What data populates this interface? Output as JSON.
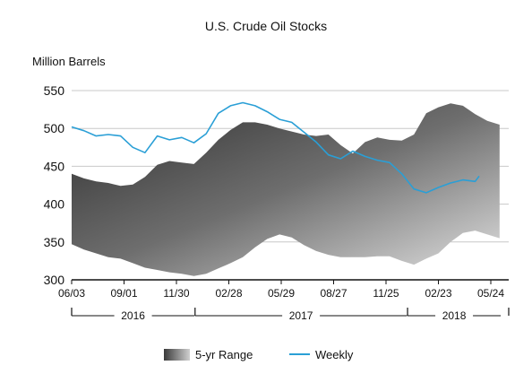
{
  "chart_data": {
    "type": "area",
    "title": "U.S. Crude Oil Stocks",
    "ylabel": "Million Barrels",
    "xlabel": "",
    "ylim": [
      300,
      550
    ],
    "yticks": [
      300,
      350,
      400,
      450,
      500,
      550
    ],
    "grid": true,
    "legend_position": "bottom",
    "x_ticks": [
      {
        "label": "06/03",
        "date": "2016-06-03"
      },
      {
        "label": "09/01",
        "date": "2016-09-01"
      },
      {
        "label": "11/30",
        "date": "2016-11-30"
      },
      {
        "label": "02/28",
        "date": "2017-02-28"
      },
      {
        "label": "05/29",
        "date": "2017-05-29"
      },
      {
        "label": "08/27",
        "date": "2017-08-27"
      },
      {
        "label": "11/25",
        "date": "2017-11-25"
      },
      {
        "label": "02/23",
        "date": "2018-02-23"
      },
      {
        "label": "05/24",
        "date": "2018-05-24"
      }
    ],
    "year_labels": [
      {
        "label": "2016",
        "start": "2016-06-03",
        "end": "2016-12-31"
      },
      {
        "label": "2017",
        "start": "2017-01-01",
        "end": "2017-12-31"
      },
      {
        "label": "2018",
        "start": "2018-01-01",
        "end": "2018-06-10"
      }
    ],
    "range_series": {
      "name": "5-yr Range",
      "dates": [
        "2016-06-03",
        "2016-06-24",
        "2016-07-15",
        "2016-08-05",
        "2016-08-26",
        "2016-09-16",
        "2016-10-07",
        "2016-10-28",
        "2016-11-18",
        "2016-12-09",
        "2016-12-30",
        "2017-01-20",
        "2017-02-10",
        "2017-03-03",
        "2017-03-24",
        "2017-04-14",
        "2017-05-05",
        "2017-05-26",
        "2017-06-16",
        "2017-07-07",
        "2017-07-28",
        "2017-08-18",
        "2017-09-08",
        "2017-09-29",
        "2017-10-20",
        "2017-11-10",
        "2017-12-01",
        "2017-12-22",
        "2018-01-12",
        "2018-02-02",
        "2018-02-23",
        "2018-03-16",
        "2018-04-06",
        "2018-04-27",
        "2018-05-18",
        "2018-06-08"
      ],
      "high": [
        440,
        434,
        430,
        428,
        424,
        426,
        436,
        452,
        457,
        455,
        453,
        468,
        485,
        498,
        508,
        508,
        505,
        500,
        496,
        492,
        490,
        492,
        478,
        467,
        482,
        488,
        485,
        484,
        492,
        520,
        528,
        533,
        530,
        519,
        510,
        505
      ],
      "low": [
        347,
        340,
        335,
        330,
        328,
        322,
        316,
        313,
        310,
        308,
        305,
        308,
        315,
        322,
        330,
        343,
        354,
        360,
        356,
        346,
        338,
        333,
        330,
        330,
        330,
        331,
        331,
        325,
        320,
        328,
        335,
        350,
        362,
        365,
        360,
        355
      ]
    },
    "weekly_series": {
      "name": "Weekly",
      "color": "#2a9fd6",
      "dates": [
        "2016-06-03",
        "2016-06-24",
        "2016-07-15",
        "2016-08-05",
        "2016-08-26",
        "2016-09-16",
        "2016-10-07",
        "2016-10-28",
        "2016-11-18",
        "2016-12-09",
        "2016-12-30",
        "2017-01-20",
        "2017-02-10",
        "2017-03-03",
        "2017-03-24",
        "2017-04-14",
        "2017-05-05",
        "2017-05-26",
        "2017-06-16",
        "2017-07-07",
        "2017-07-28",
        "2017-08-18",
        "2017-09-08",
        "2017-09-29",
        "2017-10-20",
        "2017-11-10",
        "2017-12-01",
        "2017-12-22",
        "2018-01-12",
        "2018-02-02",
        "2018-02-23",
        "2018-03-16",
        "2018-04-06",
        "2018-04-27",
        "2018-05-04"
      ],
      "values": [
        502,
        497,
        490,
        492,
        490,
        475,
        468,
        490,
        485,
        488,
        481,
        493,
        520,
        530,
        534,
        530,
        522,
        512,
        508,
        495,
        482,
        465,
        460,
        470,
        463,
        458,
        455,
        440,
        420,
        415,
        422,
        428,
        432,
        430,
        437
      ]
    }
  },
  "legend": {
    "range_label": "5-yr Range",
    "weekly_label": "Weekly"
  }
}
